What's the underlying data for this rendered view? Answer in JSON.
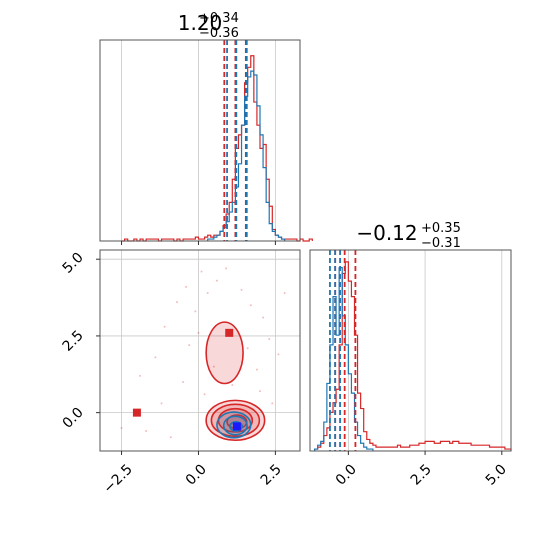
{
  "chart_data": {
    "type": "corner",
    "colors": {
      "series_a": "#1f77b4",
      "series_b": "#d62728"
    },
    "grid": true,
    "titles": [
      {
        "value": "1.20",
        "upper": "+0.34",
        "lower": "−0.36"
      },
      {
        "value": "−0.12",
        "upper": "+0.35",
        "lower": "−0.31"
      }
    ],
    "x_ticks": [
      "−2.5",
      "0.0",
      "2.5"
    ],
    "y_ticks": [
      "5.0",
      "2.5",
      "0.0"
    ],
    "x2_ticks": [
      "0.0",
      "2.5",
      "5.0"
    ],
    "param1_range": [
      -3.2,
      3.3
    ],
    "param2_range": [
      -1.25,
      5.3
    ],
    "hist1": {
      "bin_width": 0.1,
      "series_a": {
        "start": 0.3,
        "counts": [
          1,
          1,
          2,
          3,
          5,
          7,
          10,
          15,
          20,
          28,
          40,
          60,
          75,
          85,
          88,
          86,
          70,
          55,
          38,
          20,
          9,
          5,
          3,
          2,
          1
        ]
      },
      "series_b": {
        "start": -2.5,
        "counts": [
          0,
          1,
          0,
          0,
          1,
          0,
          1,
          0,
          1,
          1,
          1,
          1,
          0,
          1,
          1,
          1,
          1,
          0,
          1,
          0,
          1,
          1,
          1,
          1,
          2,
          1,
          1,
          2,
          3,
          2,
          3,
          3,
          5,
          8,
          14,
          20,
          32,
          48,
          55,
          60,
          82,
          90,
          96,
          72,
          60,
          48,
          50,
          32,
          18,
          6,
          3,
          2,
          1,
          1,
          1,
          1,
          1,
          0,
          1,
          0,
          0,
          1
        ]
      }
    },
    "hist2": {
      "bin_width": 0.1,
      "series_a": {
        "start": -1.1,
        "counts": [
          1,
          3,
          5,
          15,
          35,
          55,
          80,
          60,
          95,
          70,
          55,
          40,
          30,
          15,
          8,
          4,
          2,
          1,
          1
        ]
      },
      "series_b": {
        "start": -1.1,
        "counts": [
          1,
          2,
          4,
          8,
          12,
          20,
          25,
          32,
          55,
          92,
          98,
          88,
          80,
          60,
          30,
          22,
          10,
          6,
          4,
          3,
          2,
          2,
          2,
          2,
          2,
          2,
          2,
          3,
          2,
          2,
          2,
          3,
          3,
          3,
          4,
          4,
          5,
          5,
          5,
          4,
          4,
          5,
          5,
          5,
          4,
          5,
          5,
          4,
          4,
          4,
          4,
          3,
          3,
          3,
          3,
          3,
          3,
          2,
          2,
          2,
          2,
          2,
          1,
          1
        ]
      }
    },
    "quantiles": {
      "series_a": {
        "p1": [
          0.93,
          1.23,
          1.57
        ],
        "p2": [
          -0.6,
          -0.43,
          -0.27
        ]
      },
      "series_b": {
        "p1": [
          0.84,
          1.2,
          1.54
        ],
        "p2": [
          -0.43,
          -0.12,
          0.23
        ]
      }
    },
    "contours": {
      "series_b": [
        {
          "cx": 0.85,
          "cy": 1.95,
          "rx": 0.6,
          "ry": 1.0
        },
        {
          "cx": 1.2,
          "cy": -0.25,
          "rx": 0.95,
          "ry": 0.65
        },
        {
          "cx": 1.2,
          "cy": -0.25,
          "rx": 0.78,
          "ry": 0.52
        },
        {
          "cx": 1.2,
          "cy": -0.25,
          "rx": 0.55,
          "ry": 0.38
        },
        {
          "cx": 1.25,
          "cy": -0.3,
          "rx": 0.32,
          "ry": 0.22
        }
      ],
      "series_a": [
        {
          "cx": 1.15,
          "cy": -0.4,
          "rx": 0.55,
          "ry": 0.42
        },
        {
          "cx": 1.2,
          "cy": -0.42,
          "rx": 0.38,
          "ry": 0.3
        },
        {
          "cx": 1.22,
          "cy": -0.45,
          "rx": 0.2,
          "ry": 0.15
        }
      ]
    },
    "markers": {
      "series_b": [
        {
          "x": -2.0,
          "y": 0.0
        },
        {
          "x": 1.0,
          "y": 2.6
        }
      ],
      "series_a": [
        {
          "x": 1.25,
          "y": -0.45
        }
      ]
    },
    "scatter_b": [
      {
        "x": -1.9,
        "y": 1.2
      },
      {
        "x": -1.7,
        "y": -0.6
      },
      {
        "x": -1.4,
        "y": 1.8
      },
      {
        "x": -1.1,
        "y": 2.8
      },
      {
        "x": -0.9,
        "y": -0.8
      },
      {
        "x": -0.7,
        "y": 3.6
      },
      {
        "x": -0.5,
        "y": 1.0
      },
      {
        "x": -0.3,
        "y": 2.2
      },
      {
        "x": -0.4,
        "y": 4.1
      },
      {
        "x": -0.1,
        "y": 3.3
      },
      {
        "x": 0.1,
        "y": 4.6
      },
      {
        "x": 0.3,
        "y": 3.9
      },
      {
        "x": 0.5,
        "y": 1.5
      },
      {
        "x": 0.6,
        "y": 4.3
      },
      {
        "x": 0.9,
        "y": 4.7
      },
      {
        "x": 1.1,
        "y": 0.9
      },
      {
        "x": 1.4,
        "y": 4.0
      },
      {
        "x": 1.7,
        "y": 3.5
      },
      {
        "x": 1.9,
        "y": 1.4
      },
      {
        "x": 2.1,
        "y": 3.1
      },
      {
        "x": 2.3,
        "y": 2.4
      },
      {
        "x": 2.6,
        "y": 1.9
      },
      {
        "x": 2.8,
        "y": 3.9
      },
      {
        "x": 2.0,
        "y": 0.7
      },
      {
        "x": 0.2,
        "y": 0.6
      },
      {
        "x": -2.5,
        "y": -0.5
      },
      {
        "x": -1.2,
        "y": 0.3
      },
      {
        "x": 0.0,
        "y": 2.6
      },
      {
        "x": 1.6,
        "y": 2.1
      },
      {
        "x": 2.4,
        "y": 0.3
      }
    ]
  }
}
